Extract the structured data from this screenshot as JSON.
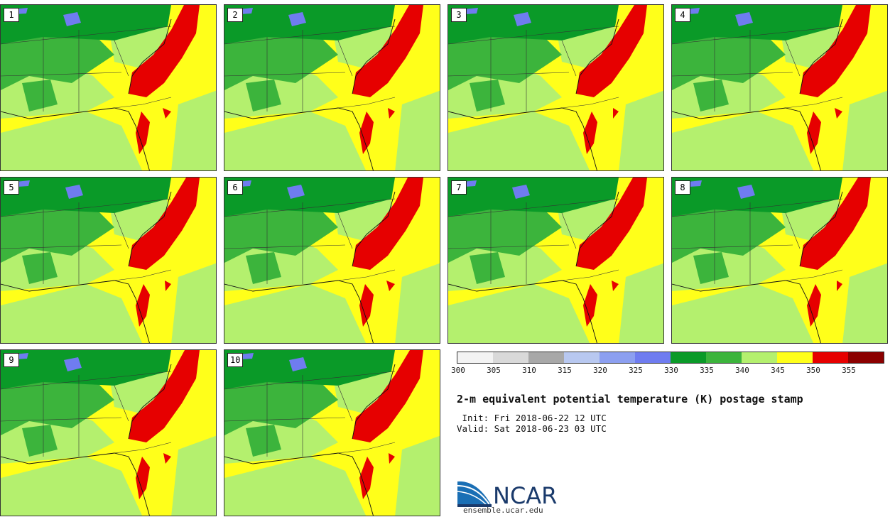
{
  "panels": [
    {
      "label": "1"
    },
    {
      "label": "2"
    },
    {
      "label": "3"
    },
    {
      "label": "4"
    },
    {
      "label": "5"
    },
    {
      "label": "6"
    },
    {
      "label": "7"
    },
    {
      "label": "8"
    },
    {
      "label": "9"
    },
    {
      "label": "10"
    }
  ],
  "colorbar": {
    "colors": [
      "#f3f3f3",
      "#d9d9d9",
      "#a8a8a8",
      "#b8c8f0",
      "#8c9ff0",
      "#6f7cf0",
      "#0a9a28",
      "#3cb43c",
      "#b4f06e",
      "#ffff1a",
      "#e60000",
      "#8b0000"
    ],
    "tick_labels": [
      "300",
      "305",
      "310",
      "315",
      "320",
      "325",
      "330",
      "335",
      "340",
      "345",
      "350",
      "355"
    ]
  },
  "title": "2-m equivalent potential temperature (K) postage stamp",
  "init": " Init: Fri 2018-06-22 12 UTC",
  "valid": "Valid: Sat 2018-06-23 03 UTC",
  "logo_text": "NCAR",
  "site": "ensemble.ucar.edu"
}
